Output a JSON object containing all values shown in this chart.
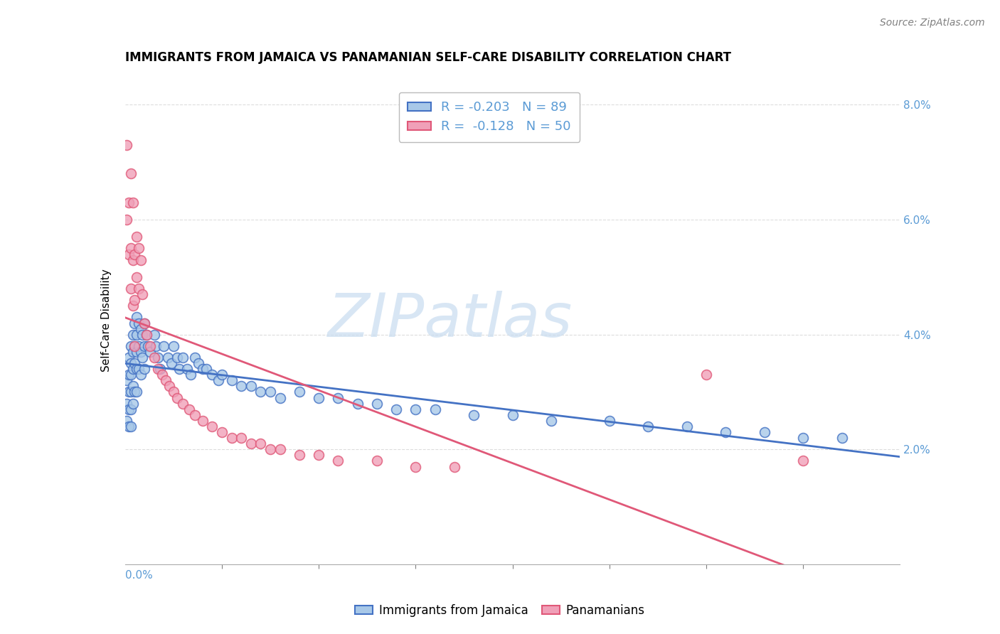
{
  "title": "IMMIGRANTS FROM JAMAICA VS PANAMANIAN SELF-CARE DISABILITY CORRELATION CHART",
  "source": "Source: ZipAtlas.com",
  "ylabel": "Self-Care Disability",
  "legend_jamaica": "Immigrants from Jamaica",
  "legend_panama": "Panamanians",
  "legend_r_jamaica": "-0.203",
  "legend_n_jamaica": "89",
  "legend_r_panama": "-0.128",
  "legend_n_panama": "50",
  "color_jamaica": "#A8C8E8",
  "color_panama": "#F0A0B8",
  "color_line_jamaica": "#4472C4",
  "color_line_panama": "#E05878",
  "color_axis_text": "#5B9BD5",
  "background_color": "#FFFFFF",
  "grid_color": "#DDDDDD",
  "xlim": [
    0.0,
    0.4
  ],
  "ylim": [
    0.0,
    0.085
  ],
  "ytick_vals": [
    0.02,
    0.04,
    0.06,
    0.08
  ],
  "jamaica_x": [
    0.001,
    0.001,
    0.001,
    0.002,
    0.002,
    0.002,
    0.002,
    0.002,
    0.003,
    0.003,
    0.003,
    0.003,
    0.003,
    0.003,
    0.004,
    0.004,
    0.004,
    0.004,
    0.004,
    0.005,
    0.005,
    0.005,
    0.005,
    0.006,
    0.006,
    0.006,
    0.006,
    0.006,
    0.007,
    0.007,
    0.007,
    0.008,
    0.008,
    0.008,
    0.009,
    0.009,
    0.01,
    0.01,
    0.01,
    0.011,
    0.012,
    0.013,
    0.015,
    0.016,
    0.017,
    0.018,
    0.02,
    0.022,
    0.024,
    0.025,
    0.027,
    0.028,
    0.03,
    0.032,
    0.034,
    0.036,
    0.038,
    0.04,
    0.042,
    0.045,
    0.048,
    0.05,
    0.055,
    0.06,
    0.065,
    0.07,
    0.075,
    0.08,
    0.09,
    0.1,
    0.11,
    0.12,
    0.13,
    0.14,
    0.15,
    0.16,
    0.18,
    0.2,
    0.22,
    0.25,
    0.27,
    0.29,
    0.31,
    0.33,
    0.35,
    0.37
  ],
  "jamaica_y": [
    0.032,
    0.028,
    0.025,
    0.036,
    0.033,
    0.03,
    0.027,
    0.024,
    0.038,
    0.035,
    0.033,
    0.03,
    0.027,
    0.024,
    0.04,
    0.037,
    0.034,
    0.031,
    0.028,
    0.042,
    0.038,
    0.035,
    0.03,
    0.043,
    0.04,
    0.037,
    0.034,
    0.03,
    0.042,
    0.038,
    0.034,
    0.041,
    0.037,
    0.033,
    0.04,
    0.036,
    0.042,
    0.038,
    0.034,
    0.04,
    0.038,
    0.037,
    0.04,
    0.038,
    0.036,
    0.034,
    0.038,
    0.036,
    0.035,
    0.038,
    0.036,
    0.034,
    0.036,
    0.034,
    0.033,
    0.036,
    0.035,
    0.034,
    0.034,
    0.033,
    0.032,
    0.033,
    0.032,
    0.031,
    0.031,
    0.03,
    0.03,
    0.029,
    0.03,
    0.029,
    0.029,
    0.028,
    0.028,
    0.027,
    0.027,
    0.027,
    0.026,
    0.026,
    0.025,
    0.025,
    0.024,
    0.024,
    0.023,
    0.023,
    0.022,
    0.022
  ],
  "panama_x": [
    0.001,
    0.001,
    0.002,
    0.002,
    0.003,
    0.003,
    0.003,
    0.004,
    0.004,
    0.004,
    0.005,
    0.005,
    0.005,
    0.006,
    0.006,
    0.007,
    0.007,
    0.008,
    0.009,
    0.01,
    0.011,
    0.013,
    0.015,
    0.017,
    0.019,
    0.021,
    0.023,
    0.025,
    0.027,
    0.03,
    0.033,
    0.036,
    0.04,
    0.045,
    0.05,
    0.055,
    0.06,
    0.065,
    0.07,
    0.075,
    0.08,
    0.09,
    0.1,
    0.11,
    0.13,
    0.15,
    0.17,
    0.3,
    0.35
  ],
  "panama_y": [
    0.073,
    0.06,
    0.063,
    0.054,
    0.068,
    0.055,
    0.048,
    0.063,
    0.053,
    0.045,
    0.054,
    0.046,
    0.038,
    0.057,
    0.05,
    0.055,
    0.048,
    0.053,
    0.047,
    0.042,
    0.04,
    0.038,
    0.036,
    0.034,
    0.033,
    0.032,
    0.031,
    0.03,
    0.029,
    0.028,
    0.027,
    0.026,
    0.025,
    0.024,
    0.023,
    0.022,
    0.022,
    0.021,
    0.021,
    0.02,
    0.02,
    0.019,
    0.019,
    0.018,
    0.018,
    0.017,
    0.017,
    0.033,
    0.018
  ],
  "watermark_text": "ZIPatlas",
  "watermark_color": "#C8DCF0",
  "title_fontsize": 12,
  "axis_fontsize": 11,
  "legend_fontsize": 13
}
